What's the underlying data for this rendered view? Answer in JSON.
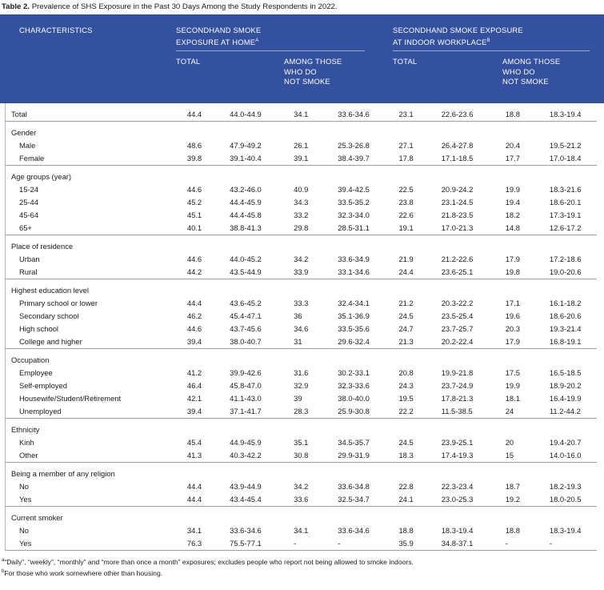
{
  "caption": {
    "label": "Table 2.",
    "text": "Prevalence of SHS Exposure in the Past 30 Days Among the Study Respondents in 2022."
  },
  "header": {
    "characteristics": "CHARACTERISTICS",
    "home_line1": "SECONDHAND SMOKE",
    "home_line2": "EXPOSURE AT HOME",
    "home_sup": "A",
    "work_line1": "SECONDHAND SMOKE EXPOSURE",
    "work_line2": "AT INDOOR WORKPLACE",
    "work_sup": "B",
    "total": "TOTAL",
    "among1": "AMONG THOSE",
    "among2": "WHO DO",
    "among3": "NOT SMOKE"
  },
  "groups": [
    {
      "title": "",
      "rows": [
        [
          "Total",
          "44.4",
          "44.0-44.9",
          "34.1",
          "33.6-34.6",
          "23.1",
          "22.6-23.6",
          "18.8",
          "18.3-19.4"
        ]
      ]
    },
    {
      "title": "Gender",
      "rows": [
        [
          "Male",
          "48.6",
          "47.9-49.2",
          "26.1",
          "25.3-26.8",
          "27.1",
          "26.4-27.8",
          "20.4",
          "19.5-21.2"
        ],
        [
          "Female",
          "39.8",
          "39.1-40.4",
          "39.1",
          "38.4-39.7",
          "17.8",
          "17.1-18.5",
          "17.7",
          "17.0-18.4"
        ]
      ]
    },
    {
      "title": "Age groups (year)",
      "rows": [
        [
          "15-24",
          "44.6",
          "43.2-46.0",
          "40.9",
          "39.4-42.5",
          "22.5",
          "20.9-24.2",
          "19.9",
          "18.3-21.6"
        ],
        [
          "25-44",
          "45.2",
          "44.4-45.9",
          "34.3",
          "33.5-35.2",
          "23.8",
          "23.1-24.5",
          "19.4",
          "18.6-20.1"
        ],
        [
          "45-64",
          "45.1",
          "44.4-45.8",
          "33.2",
          "32.3-34.0",
          "22.6",
          "21.8-23.5",
          "18.2",
          "17.3-19.1"
        ],
        [
          "65+",
          "40.1",
          "38.8-41.3",
          "29.8",
          "28.5-31.1",
          "19.1",
          "17.0-21.3",
          "14.8",
          "12.6-17.2"
        ]
      ]
    },
    {
      "title": "Place of residence",
      "rows": [
        [
          "Urban",
          "44.6",
          "44.0-45.2",
          "34.2",
          "33.6-34.9",
          "21.9",
          "21.2-22.6",
          "17.9",
          "17.2-18.6"
        ],
        [
          "Rural",
          "44.2",
          "43.5-44.9",
          "33.9",
          "33.1-34.6",
          "24.4",
          "23.6-25.1",
          "19.8",
          "19.0-20.6"
        ]
      ]
    },
    {
      "title": "Highest education level",
      "rows": [
        [
          "Primary school or lower",
          "44.4",
          "43.6-45.2",
          "33.3",
          "32.4-34.1",
          "21.2",
          "20.3-22.2",
          "17.1",
          "16.1-18.2"
        ],
        [
          "Secondary school",
          "46.2",
          "45.4-47.1",
          "36",
          "35.1-36.9",
          "24.5",
          "23.5-25.4",
          "19.6",
          "18.6-20.6"
        ],
        [
          "High school",
          "44.6",
          "43.7-45.6",
          "34.6",
          "33.5-35.6",
          "24.7",
          "23.7-25.7",
          "20.3",
          "19.3-21.4"
        ],
        [
          "College and higher",
          "39.4",
          "38.0-40.7",
          "31",
          "29.6-32.4",
          "21.3",
          "20.2-22.4",
          "17.9",
          "16.8-19.1"
        ]
      ]
    },
    {
      "title": "Occupation",
      "rows": [
        [
          "Employee",
          "41.2",
          "39.9-42.6",
          "31.6",
          "30.2-33.1",
          "20.8",
          "19.9-21.8",
          "17.5",
          "16.5-18.5"
        ],
        [
          "Self-employed",
          "46.4",
          "45.8-47.0",
          "32.9",
          "32.3-33.6",
          "24.3",
          "23.7-24.9",
          "19.9",
          "18.9-20.2"
        ],
        [
          "Housewife/Student/Retirement",
          "42.1",
          "41.1-43.0",
          "39",
          "38.0-40.0",
          "19.5",
          "17.8-21.3",
          "18.1",
          "16.4-19.9"
        ],
        [
          "Unemployed",
          "39.4",
          "37.1-41.7",
          "28.3",
          "25.9-30.8",
          "22.2",
          "11.5-38.5",
          "24",
          "11.2-44.2"
        ]
      ]
    },
    {
      "title": "Ethnicity",
      "rows": [
        [
          "Kinh",
          "45.4",
          "44.9-45.9",
          "35.1",
          "34.5-35.7",
          "24.5",
          "23.9-25.1",
          "20",
          "19.4-20.7"
        ],
        [
          "Other",
          "41.3",
          "40.3-42.2",
          "30.8",
          "29.9-31.9",
          "18.3",
          "17.4-19.3",
          "15",
          "14.0-16.0"
        ]
      ]
    },
    {
      "title": "Being a member of any religion",
      "rows": [
        [
          "No",
          "44.4",
          "43.9-44.9",
          "34.2",
          "33.6-34.8",
          "22.8",
          "22.3-23.4",
          "18.7",
          "18.2-19.3"
        ],
        [
          "Yes",
          "44.4",
          "43.4-45.4",
          "33.6",
          "32.5-34.7",
          "24.1",
          "23.0-25.3",
          "19.2",
          "18.0-20.5"
        ]
      ]
    },
    {
      "title": "Current smoker",
      "rows": [
        [
          "No",
          "34.1",
          "33.6-34.6",
          "34.1",
          "33.6-34.6",
          "18.8",
          "18.3-19.4",
          "18.8",
          "18.3-19.4"
        ],
        [
          "Yes",
          "76.3",
          "75.5-77.1",
          "-",
          "-",
          "35.9",
          "34.8-37.1",
          "-",
          "-"
        ]
      ]
    }
  ],
  "footnotes": {
    "a_mark": "a",
    "a_text": "“Daily”, “weekly”, “monthly” and “more than once a month” exposures; excludes people who report not being allowed to smoke indoors.",
    "b_mark": "b",
    "b_text": "For those who work somewhere other than housing."
  },
  "colors": {
    "header_bg": "#3451a0",
    "header_text": "#ffffff",
    "rule": "#a0a0a0"
  }
}
